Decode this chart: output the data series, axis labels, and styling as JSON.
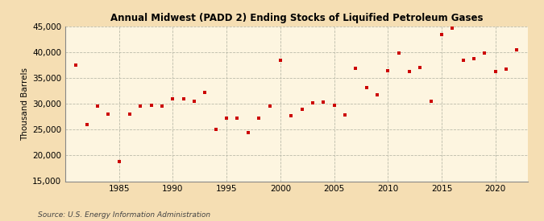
{
  "title": "Annual Midwest (PADD 2) Ending Stocks of Liquified Petroleum Gases",
  "ylabel": "Thousand Barrels",
  "source": "Source: U.S. Energy Information Administration",
  "background_color": "#f5deb3",
  "plot_background_color": "#fdf5e0",
  "marker_color": "#cc0000",
  "years": [
    1981,
    1982,
    1983,
    1984,
    1985,
    1986,
    1987,
    1988,
    1989,
    1990,
    1991,
    1992,
    1993,
    1994,
    1995,
    1996,
    1997,
    1998,
    1999,
    2000,
    2001,
    2002,
    2003,
    2004,
    2005,
    2006,
    2007,
    2008,
    2009,
    2010,
    2011,
    2012,
    2013,
    2014,
    2015,
    2016,
    2017,
    2018,
    2019,
    2020,
    2021,
    2022
  ],
  "values": [
    37500,
    26000,
    29500,
    28000,
    18800,
    28000,
    29500,
    29700,
    29500,
    31000,
    31000,
    30500,
    32200,
    25000,
    27200,
    27200,
    24500,
    27300,
    29600,
    38500,
    27700,
    29000,
    30200,
    30300,
    29700,
    27800,
    36900,
    33100,
    31700,
    36400,
    39900,
    36300,
    37100,
    30500,
    43500,
    44700,
    38500,
    38800,
    39800,
    36200,
    36700,
    40500
  ],
  "ylim": [
    15000,
    45000
  ],
  "yticks": [
    15000,
    20000,
    25000,
    30000,
    35000,
    40000,
    45000
  ],
  "xticks": [
    1985,
    1990,
    1995,
    2000,
    2005,
    2010,
    2015,
    2020
  ],
  "xlim": [
    1980,
    2023
  ]
}
